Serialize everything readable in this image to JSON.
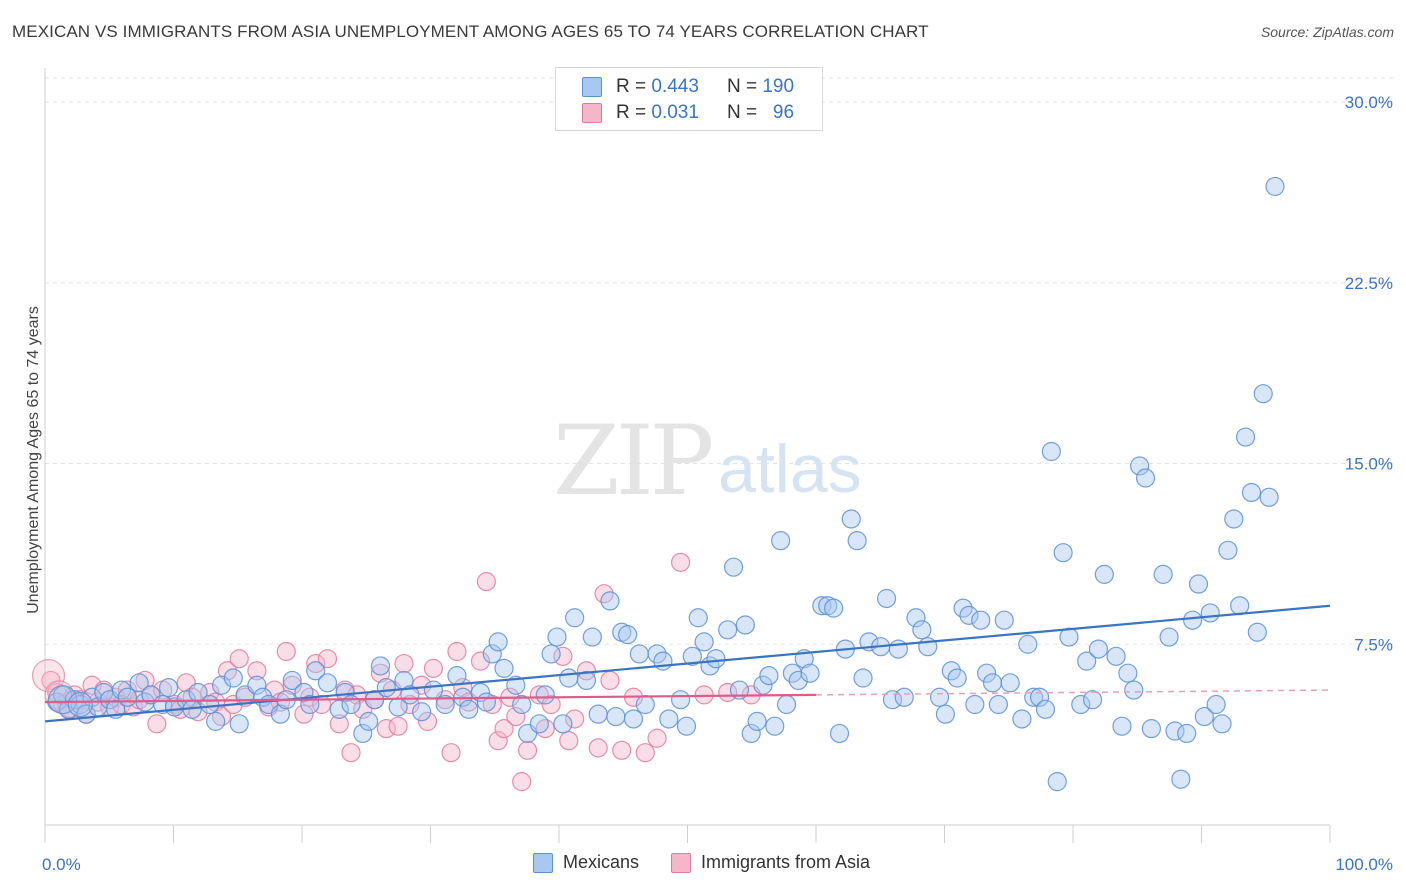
{
  "title": "MEXICAN VS IMMIGRANTS FROM ASIA UNEMPLOYMENT AMONG AGES 65 TO 74 YEARS CORRELATION CHART",
  "source": "Source: ZipAtlas.com",
  "watermark": {
    "zip": "ZIP",
    "atlas": "atlas"
  },
  "legend_top": [
    {
      "r_label": "R =",
      "r_value": "0.443",
      "n_label": "N =",
      "n_value": "190",
      "color": "#a8c8f0"
    },
    {
      "r_label": "R =",
      "r_value": "0.031",
      "n_label": "N =",
      "n_value": "96",
      "color": "#f5b6c9"
    }
  ],
  "chart_data": {
    "type": "scatter",
    "title": "MEXICAN VS IMMIGRANTS FROM ASIA UNEMPLOYMENT AMONG AGES 65 TO 74 YEARS CORRELATION CHART",
    "xlabel": "",
    "ylabel": "Unemployment Among Ages 65 to 74 years",
    "xlim": [
      0,
      100
    ],
    "ylim": [
      0,
      31
    ],
    "x_tick_labels": [
      "0.0%",
      "100.0%"
    ],
    "y_ticks": [
      7.5,
      15.0,
      22.5,
      30.0
    ],
    "y_tick_labels": [
      "7.5%",
      "15.0%",
      "22.5%",
      "30.0%"
    ],
    "grid": "horizontal-dashed",
    "legend_position": "top-center",
    "series": [
      {
        "name": "Mexicans",
        "color": "#5b8fd6",
        "fill": "#a8c8f0",
        "trend": {
          "x": [
            0,
            100
          ],
          "y": [
            4.3,
            9.1
          ]
        },
        "points": [
          [
            1,
            5.1
          ],
          [
            1.5,
            5.4
          ],
          [
            2,
            4.8
          ],
          [
            2.5,
            5.2
          ],
          [
            3,
            5.0
          ],
          [
            3.5,
            4.6
          ],
          [
            4,
            5.3
          ],
          [
            4.5,
            4.9
          ],
          [
            5,
            5.5
          ],
          [
            5.5,
            5.2
          ],
          [
            6,
            4.8
          ],
          [
            6.5,
            5.6
          ],
          [
            7,
            5.3
          ],
          [
            8,
            5.9
          ],
          [
            8.5,
            5.1
          ],
          [
            9,
            5.4
          ],
          [
            10,
            5.0
          ],
          [
            10.5,
            5.7
          ],
          [
            11,
            4.9
          ],
          [
            12,
            5.2
          ],
          [
            12.5,
            4.8
          ],
          [
            13,
            5.5
          ],
          [
            14,
            5.0
          ],
          [
            14.5,
            4.3
          ],
          [
            15,
            5.8
          ],
          [
            16,
            6.1
          ],
          [
            16.5,
            4.2
          ],
          [
            17,
            5.4
          ],
          [
            18,
            5.8
          ],
          [
            18.5,
            5.3
          ],
          [
            19,
            5.0
          ],
          [
            20,
            4.6
          ],
          [
            20.5,
            5.2
          ],
          [
            21,
            6.0
          ],
          [
            22,
            5.5
          ],
          [
            22.5,
            5.0
          ],
          [
            23,
            6.4
          ],
          [
            24,
            5.9
          ],
          [
            25,
            4.8
          ],
          [
            25.5,
            5.5
          ],
          [
            26,
            5.0
          ],
          [
            27,
            3.8
          ],
          [
            27.5,
            4.3
          ],
          [
            28,
            5.2
          ],
          [
            28.5,
            6.6
          ],
          [
            29,
            5.7
          ],
          [
            30,
            4.9
          ],
          [
            30.5,
            6.0
          ],
          [
            31,
            5.4
          ],
          [
            32,
            4.7
          ],
          [
            33,
            5.6
          ],
          [
            34,
            5.0
          ],
          [
            35,
            6.2
          ],
          [
            35.5,
            5.3
          ],
          [
            36,
            4.8
          ],
          [
            37,
            5.5
          ],
          [
            37.5,
            5.1
          ],
          [
            38,
            7.1
          ],
          [
            38.5,
            7.6
          ],
          [
            39,
            6.5
          ],
          [
            40,
            5.8
          ],
          [
            40.5,
            5.0
          ],
          [
            41,
            3.8
          ],
          [
            42,
            4.2
          ],
          [
            42.5,
            5.4
          ],
          [
            43,
            7.1
          ],
          [
            43.5,
            7.8
          ],
          [
            44,
            4.2
          ],
          [
            44.5,
            6.1
          ],
          [
            45,
            8.6
          ],
          [
            46,
            6.0
          ],
          [
            46.5,
            7.8
          ],
          [
            47,
            4.6
          ],
          [
            48,
            9.3
          ],
          [
            48.5,
            4.5
          ],
          [
            49,
            8.0
          ],
          [
            49.5,
            7.9
          ],
          [
            50,
            4.4
          ],
          [
            50.5,
            7.1
          ],
          [
            51,
            5.0
          ],
          [
            52,
            7.1
          ],
          [
            52.5,
            6.8
          ],
          [
            53,
            4.4
          ],
          [
            54,
            5.2
          ],
          [
            54.5,
            4.1
          ],
          [
            55,
            7.0
          ],
          [
            55.5,
            8.6
          ],
          [
            56,
            7.6
          ],
          [
            56.5,
            6.6
          ],
          [
            57,
            6.9
          ],
          [
            58,
            8.1
          ],
          [
            58.5,
            10.7
          ],
          [
            59,
            5.6
          ],
          [
            59.5,
            8.3
          ],
          [
            60,
            3.8
          ],
          [
            60.5,
            4.3
          ],
          [
            61,
            5.8
          ],
          [
            61.5,
            6.2
          ],
          [
            62,
            4.1
          ],
          [
            62.5,
            11.8
          ],
          [
            63,
            5.0
          ],
          [
            63.5,
            6.3
          ],
          [
            64,
            6.0
          ],
          [
            64.5,
            6.9
          ],
          [
            65,
            6.3
          ],
          [
            66,
            9.1
          ],
          [
            66.5,
            9.1
          ],
          [
            67,
            9.0
          ],
          [
            67.5,
            3.8
          ],
          [
            68,
            7.3
          ],
          [
            68.5,
            12.7
          ],
          [
            69,
            11.8
          ],
          [
            69.5,
            6.1
          ],
          [
            70,
            7.6
          ],
          [
            71,
            7.4
          ],
          [
            71.5,
            9.4
          ],
          [
            72,
            5.2
          ],
          [
            72.5,
            7.3
          ],
          [
            73,
            5.3
          ],
          [
            74,
            8.6
          ],
          [
            74.5,
            8.1
          ],
          [
            75,
            7.4
          ],
          [
            76,
            5.3
          ],
          [
            76.5,
            4.6
          ],
          [
            77,
            6.4
          ],
          [
            77.5,
            6.1
          ],
          [
            78,
            9.0
          ],
          [
            78.5,
            8.7
          ],
          [
            79,
            5.0
          ],
          [
            79.5,
            8.5
          ],
          [
            80,
            6.3
          ],
          [
            80.5,
            5.9
          ],
          [
            81,
            5.0
          ],
          [
            81.5,
            8.5
          ],
          [
            82,
            5.9
          ],
          [
            83,
            4.4
          ],
          [
            83.5,
            7.5
          ],
          [
            84,
            5.3
          ],
          [
            84.5,
            5.3
          ],
          [
            85,
            4.8
          ],
          [
            85.5,
            15.5
          ],
          [
            86,
            1.8
          ],
          [
            86.5,
            11.3
          ],
          [
            87,
            7.8
          ],
          [
            88,
            5.0
          ],
          [
            88.5,
            6.8
          ],
          [
            89,
            5.2
          ],
          [
            89.5,
            7.3
          ],
          [
            90,
            10.4
          ],
          [
            91,
            7.0
          ],
          [
            91.5,
            4.1
          ],
          [
            92,
            6.3
          ],
          [
            92.5,
            5.6
          ],
          [
            93,
            14.9
          ],
          [
            93.5,
            14.4
          ],
          [
            94,
            4.0
          ],
          [
            95,
            10.4
          ],
          [
            95.5,
            7.8
          ],
          [
            96,
            3.9
          ],
          [
            96.5,
            1.9
          ],
          [
            97,
            3.8
          ],
          [
            97.5,
            8.5
          ],
          [
            98,
            10.0
          ],
          [
            98.5,
            4.5
          ],
          [
            99,
            8.8
          ],
          [
            99.5,
            5.0
          ],
          [
            100,
            4.2
          ],
          [
            100.5,
            11.4
          ],
          [
            101,
            12.7
          ],
          [
            101.5,
            9.1
          ],
          [
            102,
            16.1
          ],
          [
            102.5,
            13.8
          ],
          [
            103,
            8.0
          ],
          [
            103.5,
            17.9
          ],
          [
            104,
            13.6
          ],
          [
            104.5,
            26.5
          ]
        ]
      },
      {
        "name": "Immigrants from Asia",
        "color": "#e27a9c",
        "fill": "#f5b6c9",
        "trend": {
          "x": [
            0,
            60
          ],
          "y": [
            5.1,
            5.4
          ]
        },
        "trend_dashed": {
          "x": [
            60,
            100
          ],
          "y": [
            5.4,
            5.6
          ]
        },
        "points": [
          [
            0.5,
            6.0
          ],
          [
            1,
            5.5
          ],
          [
            1.5,
            5.0
          ],
          [
            2,
            4.8
          ],
          [
            2.5,
            5.4
          ],
          [
            3,
            5.2
          ],
          [
            3.5,
            4.6
          ],
          [
            4,
            5.8
          ],
          [
            4.5,
            5.1
          ],
          [
            5,
            5.6
          ],
          [
            5.5,
            4.9
          ],
          [
            6,
            5.3
          ],
          [
            6.5,
            5.0
          ],
          [
            7,
            5.6
          ],
          [
            7.5,
            4.9
          ],
          [
            8,
            5.2
          ],
          [
            8.5,
            6.0
          ],
          [
            9,
            5.4
          ],
          [
            9.5,
            4.2
          ],
          [
            10,
            5.6
          ],
          [
            11,
            5.0
          ],
          [
            11.5,
            4.8
          ],
          [
            12,
            5.9
          ],
          [
            12.5,
            5.3
          ],
          [
            13,
            4.7
          ],
          [
            14,
            5.5
          ],
          [
            14.5,
            5.1
          ],
          [
            15,
            4.5
          ],
          [
            15.5,
            6.4
          ],
          [
            16,
            5.0
          ],
          [
            16.5,
            6.9
          ],
          [
            17,
            5.3
          ],
          [
            18,
            6.4
          ],
          [
            19,
            4.9
          ],
          [
            19.5,
            5.6
          ],
          [
            20,
            5.1
          ],
          [
            20.5,
            7.2
          ],
          [
            21,
            5.8
          ],
          [
            22,
            4.6
          ],
          [
            22.5,
            5.3
          ],
          [
            23,
            6.7
          ],
          [
            23.5,
            5.0
          ],
          [
            24,
            6.9
          ],
          [
            25,
            4.2
          ],
          [
            25.5,
            5.6
          ],
          [
            26,
            3.0
          ],
          [
            26.5,
            5.4
          ],
          [
            27,
            4.8
          ],
          [
            28,
            5.2
          ],
          [
            28.5,
            6.3
          ],
          [
            29,
            4.0
          ],
          [
            29.5,
            5.6
          ],
          [
            30,
            4.1
          ],
          [
            30.5,
            6.7
          ],
          [
            31,
            5.0
          ],
          [
            32,
            5.8
          ],
          [
            32.5,
            4.3
          ],
          [
            33,
            6.5
          ],
          [
            34,
            5.2
          ],
          [
            34.5,
            3.0
          ],
          [
            35,
            7.2
          ],
          [
            35.5,
            5.7
          ],
          [
            36,
            5.1
          ],
          [
            37,
            6.8
          ],
          [
            37.5,
            10.1
          ],
          [
            38,
            5.0
          ],
          [
            38.5,
            3.5
          ],
          [
            39,
            4.0
          ],
          [
            39.5,
            5.3
          ],
          [
            40,
            4.5
          ],
          [
            40.5,
            1.8
          ],
          [
            41,
            3.1
          ],
          [
            42,
            5.4
          ],
          [
            42.5,
            4.0
          ],
          [
            43,
            5.0
          ],
          [
            44,
            7.0
          ],
          [
            44.5,
            3.5
          ],
          [
            45,
            4.4
          ],
          [
            46,
            6.4
          ],
          [
            47,
            3.2
          ],
          [
            47.5,
            9.6
          ],
          [
            48,
            6.0
          ],
          [
            49,
            3.1
          ],
          [
            50,
            5.3
          ],
          [
            51,
            3.0
          ],
          [
            52,
            3.6
          ],
          [
            54,
            10.9
          ],
          [
            56,
            5.4
          ],
          [
            58,
            5.5
          ],
          [
            60,
            5.4
          ]
        ]
      }
    ]
  }
}
